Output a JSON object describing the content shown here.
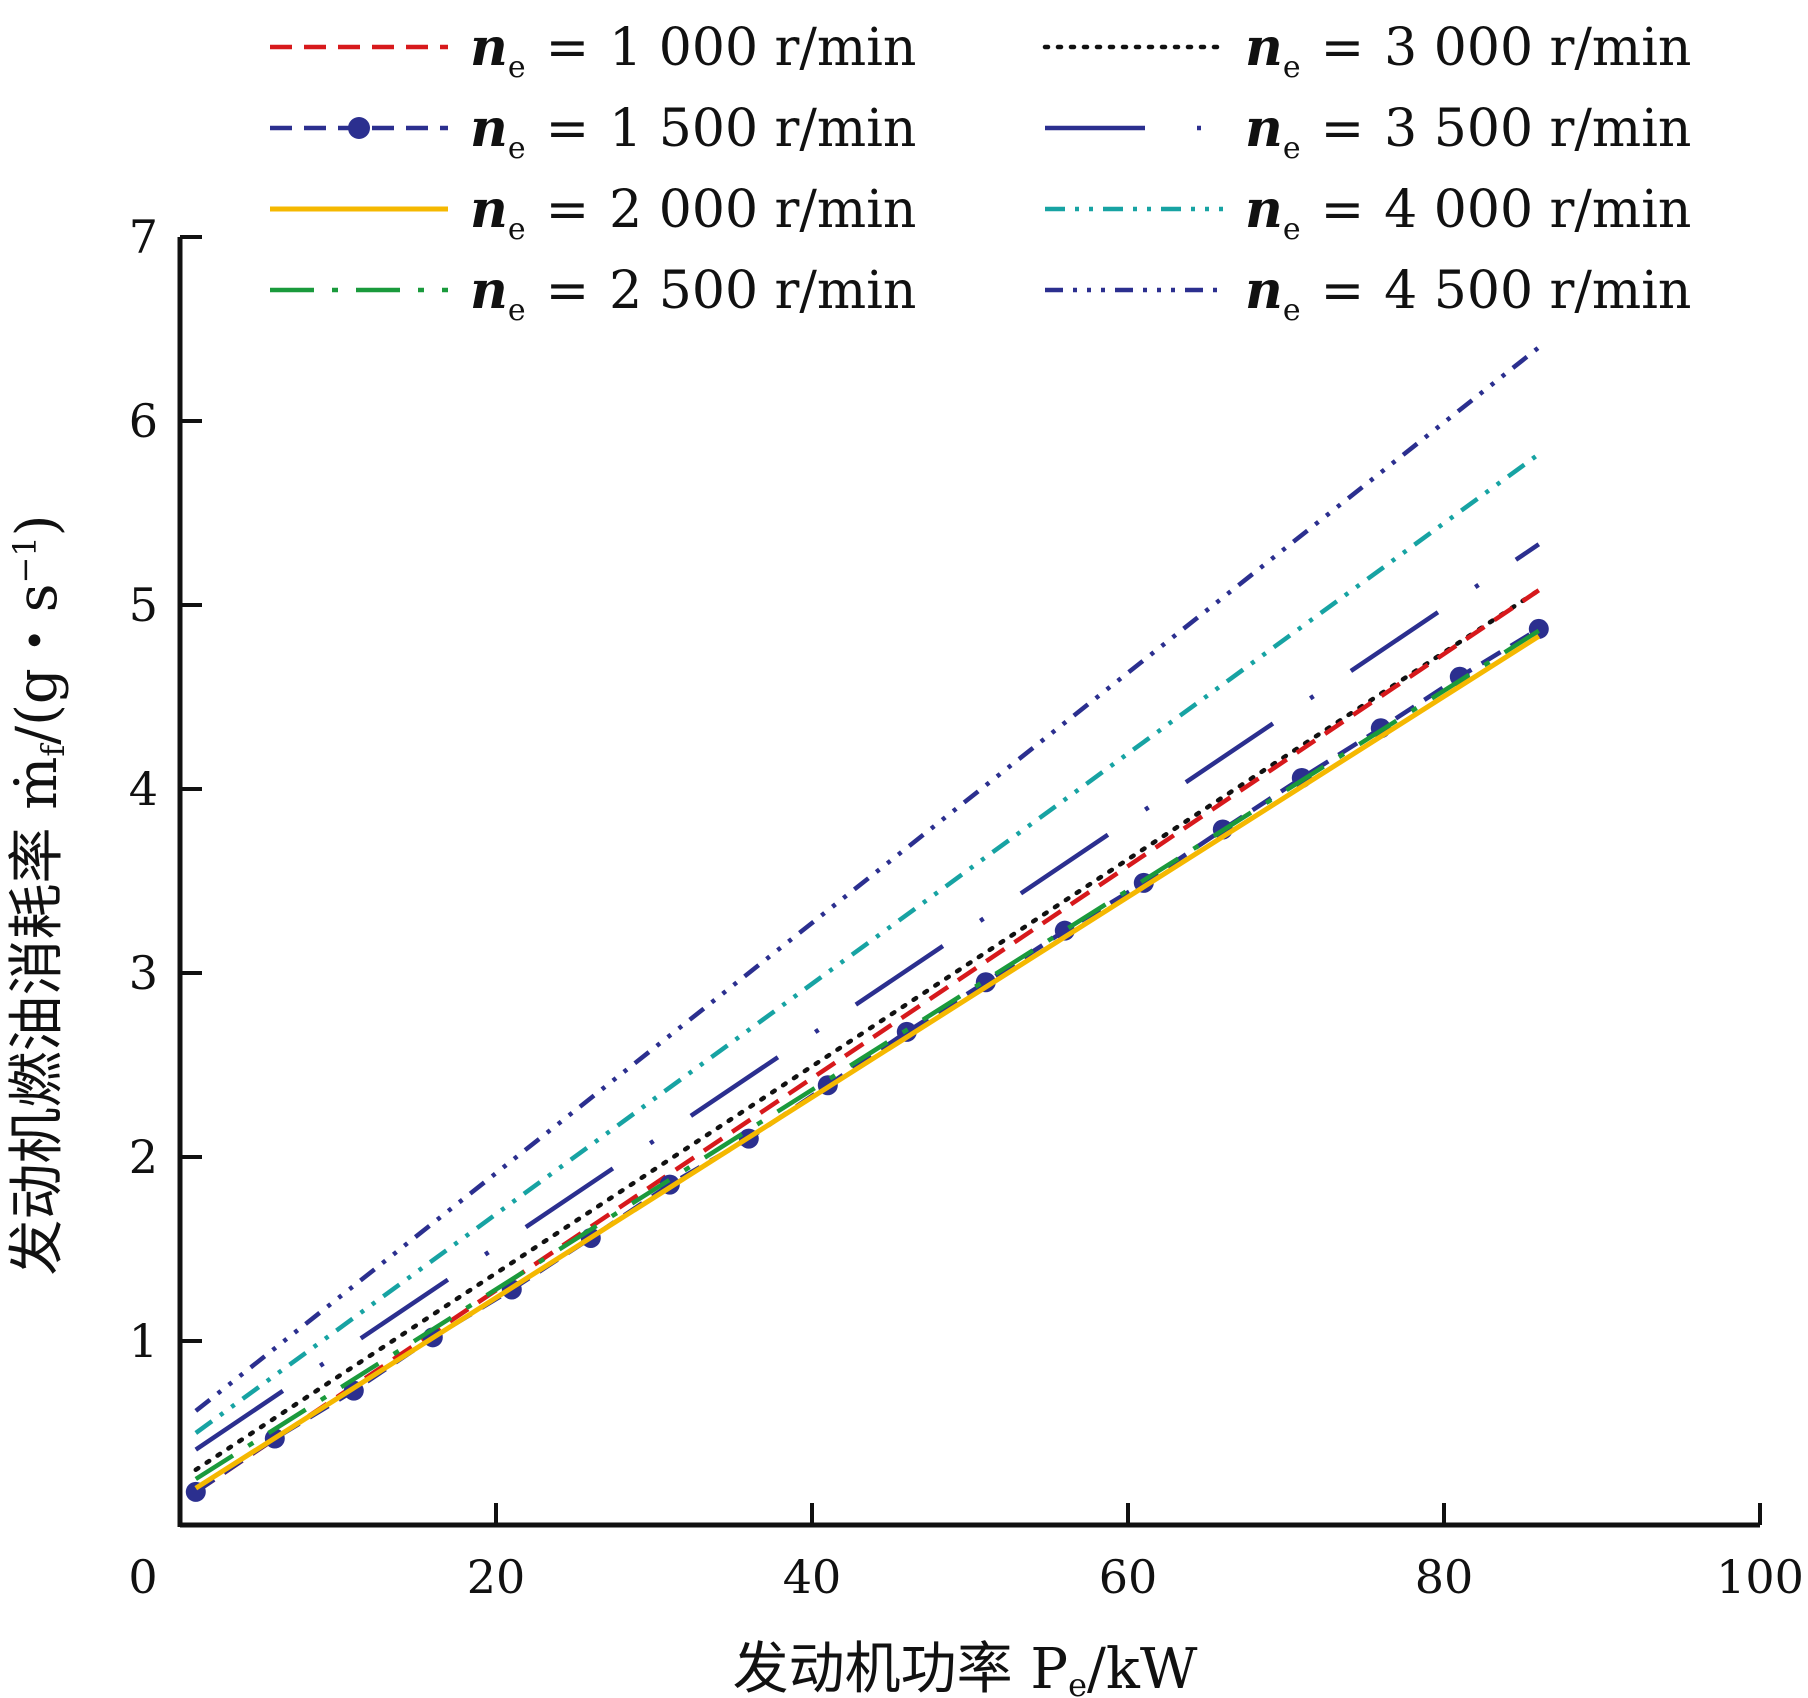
{
  "chart_data": {
    "type": "line",
    "xlabel": "发动机功率 P",
    "xlabel_sub": "e",
    "xlabel_unit": "/kW",
    "ylabel": "发动机燃油消耗率 ṁ",
    "ylabel_sub": "f",
    "ylabel_unit_open": "/(g・s",
    "ylabel_unit_sup": "−1",
    "ylabel_unit_close": ")",
    "xlim": [
      0,
      100
    ],
    "ylim": [
      0,
      7
    ],
    "xticks": [
      "0",
      "20",
      "40",
      "60",
      "80",
      "100"
    ],
    "yticks": [
      "1",
      "2",
      "3",
      "4",
      "5",
      "6",
      "7"
    ],
    "grid": false,
    "legend_position": "top",
    "legend_var": "n",
    "legend_var_sub": "e",
    "legend_eq": "=",
    "series": [
      {
        "name": "1 000 r/min",
        "color": "#d7191c",
        "style": "dashed",
        "x": [
          1,
          86
        ],
        "y": [
          0.18,
          5.08
        ]
      },
      {
        "name": "1 500 r/min",
        "color": "#2b2f8f",
        "style": "dashed-markers",
        "x": [
          1,
          6,
          11,
          16,
          21,
          26,
          31,
          36,
          41,
          46,
          51,
          56,
          61,
          66,
          71,
          76,
          81,
          86
        ],
        "y": [
          0.18,
          0.47,
          0.73,
          1.02,
          1.28,
          1.56,
          1.85,
          2.1,
          2.39,
          2.68,
          2.95,
          3.23,
          3.49,
          3.78,
          4.06,
          4.33,
          4.61,
          4.87
        ]
      },
      {
        "name": "2 000 r/min",
        "color": "#f5b800",
        "style": "solid",
        "x": [
          1,
          86
        ],
        "y": [
          0.2,
          4.83
        ]
      },
      {
        "name": "2 500 r/min",
        "color": "#1a9a3c",
        "style": "dash-dot-long",
        "x": [
          1,
          86
        ],
        "y": [
          0.25,
          4.86
        ]
      },
      {
        "name": "3 000 r/min",
        "color": "#111111",
        "style": "dotted",
        "x": [
          1,
          86
        ],
        "y": [
          0.3,
          5.08
        ]
      },
      {
        "name": "3 500 r/min",
        "color": "#2b2f8f",
        "style": "long-dash-dot",
        "x": [
          1,
          86
        ],
        "y": [
          0.41,
          5.33
        ]
      },
      {
        "name": "4 000 r/min",
        "color": "#17a3a3",
        "style": "dash-dot-dot",
        "x": [
          1,
          86
        ],
        "y": [
          0.5,
          5.82
        ]
      },
      {
        "name": "4 500 r/min",
        "color": "#2b2f8f",
        "style": "dash-dot-dot-dot",
        "x": [
          1,
          86
        ],
        "y": [
          0.62,
          6.4
        ]
      }
    ]
  }
}
